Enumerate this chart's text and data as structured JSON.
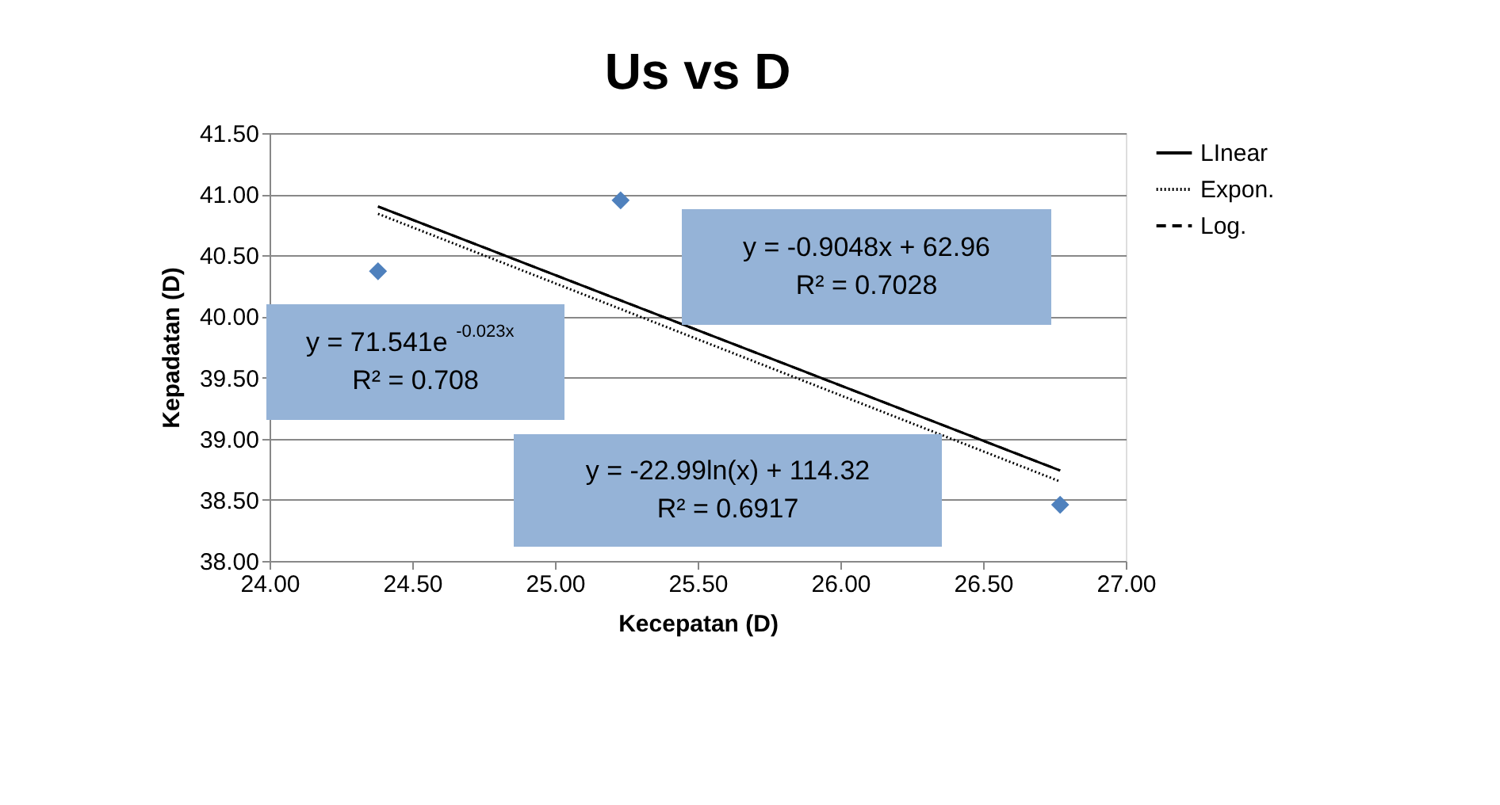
{
  "chart_data": {
    "type": "scatter",
    "title": "Us vs D",
    "xlabel": "Kecepatan (D)",
    "ylabel": "Kepadatan (D)",
    "series": [
      {
        "type": "scatter",
        "color": "#4f81bd",
        "marker": "diamond",
        "x": [
          24.38,
          25.23,
          26.77
        ],
        "values": [
          40.37,
          40.95,
          38.46
        ]
      },
      {
        "type": "line",
        "name": "LInear",
        "color": "#000000",
        "line_style": "solid",
        "x": [
          24.38,
          26.77
        ],
        "values": [
          40.9,
          38.74
        ]
      },
      {
        "type": "line",
        "name": "Expon.",
        "color": "#000000",
        "line_style": "dotted",
        "x": [
          24.38,
          26.77
        ],
        "values": [
          40.84,
          38.65
        ]
      },
      {
        "type": "line",
        "name": "Log.",
        "color": "#000000",
        "line_style": "dashed",
        "x": [
          24.38,
          26.77
        ],
        "values": [
          40.9,
          38.74
        ]
      }
    ],
    "xlim": [
      24,
      27
    ],
    "ylim": [
      38,
      41.5
    ],
    "xticks": [
      {
        "value": 24,
        "label": "24.00"
      },
      {
        "value": 24.5,
        "label": "24.50"
      },
      {
        "value": 25,
        "label": "25.00"
      },
      {
        "value": 25.5,
        "label": "25.50"
      },
      {
        "value": 26,
        "label": "26.00"
      },
      {
        "value": 26.5,
        "label": "26.50"
      },
      {
        "value": 27,
        "label": "27.00"
      }
    ],
    "yticks": [
      {
        "value": 38,
        "label": "38.00"
      },
      {
        "value": 38.5,
        "label": "38.50"
      },
      {
        "value": 39,
        "label": "39.00"
      },
      {
        "value": 39.5,
        "label": "39.50"
      },
      {
        "value": 40,
        "label": "40.00"
      },
      {
        "value": 40.5,
        "label": "40.50"
      },
      {
        "value": 41,
        "label": "41.00"
      },
      {
        "value": 41.5,
        "label": "41.50"
      }
    ],
    "annotations": [
      "y = 71.541e$^{-0.023x}$\nR² = 0.708",
      "y = -0.9048x + 62.96\nR² = 0.7028",
      "y = -22.99ln(x) + 114.32\nR² = 0.6917"
    ],
    "grid": "y",
    "legend": "right"
  }
}
